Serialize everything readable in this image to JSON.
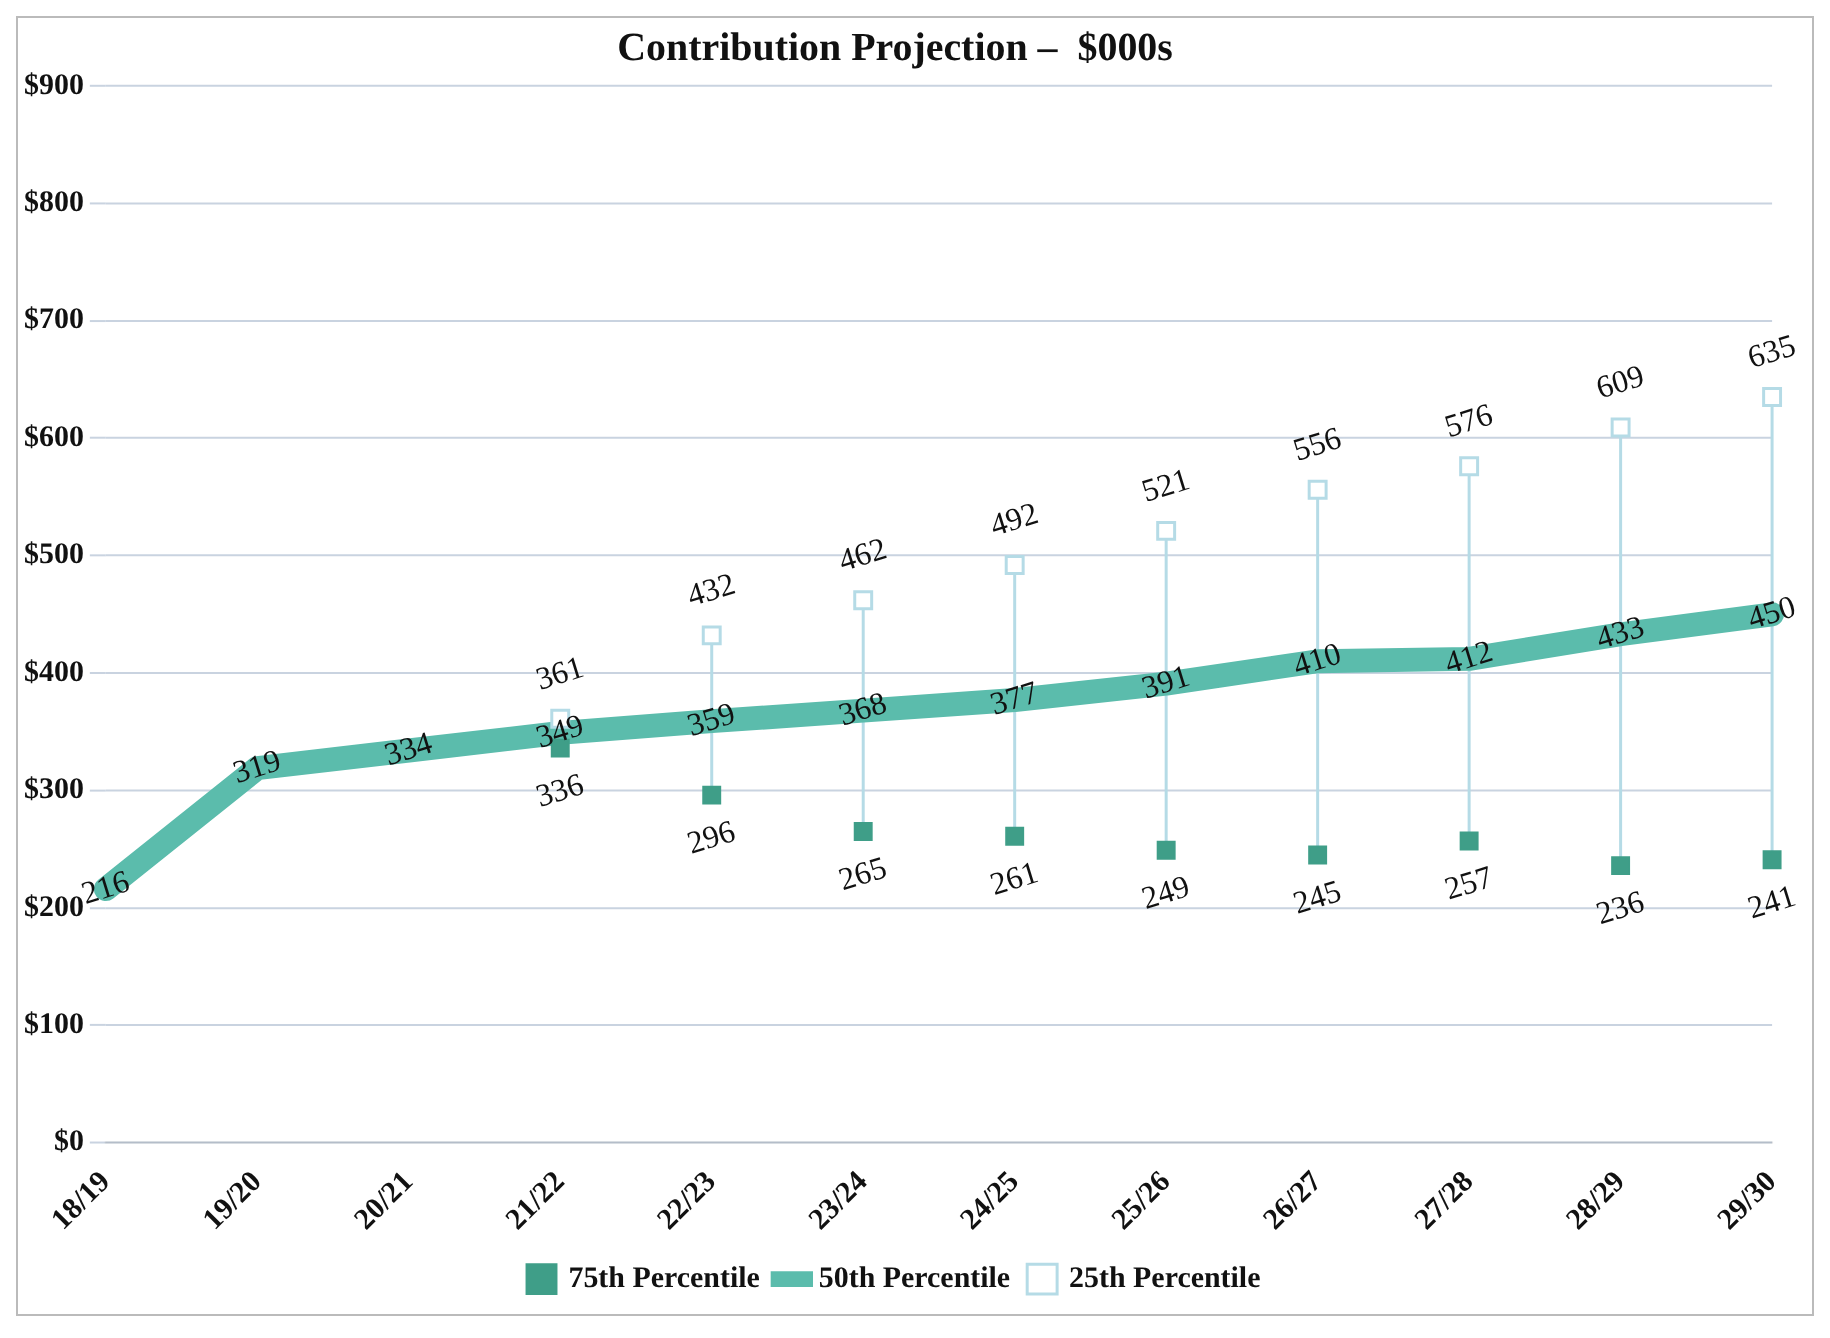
{
  "chart_data": {
    "type": "line",
    "title": "Contribution Projection –  $000s",
    "categories": [
      "18/19",
      "19/20",
      "20/21",
      "21/22",
      "22/23",
      "23/24",
      "24/25",
      "25/26",
      "26/27",
      "27/28",
      "28/29",
      "29/30"
    ],
    "series": [
      {
        "name": "75th Percentile",
        "type": "scatter",
        "color": "#3f9e88",
        "marker": "square",
        "values": [
          null,
          null,
          null,
          336,
          296,
          265,
          261,
          249,
          245,
          257,
          236,
          241
        ]
      },
      {
        "name": "50th Percentile",
        "color": "#5bbcac",
        "marker": "none",
        "line_style": "solid",
        "values": [
          216,
          319,
          334,
          349,
          359,
          368,
          377,
          391,
          410,
          412,
          433,
          450
        ]
      },
      {
        "name": "25th Percentile",
        "type": "scatter",
        "color": "#b5dbe6",
        "marker": "square",
        "values": [
          null,
          null,
          null,
          361,
          432,
          462,
          492,
          521,
          556,
          576,
          609,
          635
        ]
      }
    ],
    "ylim": [
      0,
      900
    ],
    "yticks": [
      {
        "value": 0,
        "label": "$0"
      },
      {
        "value": 100,
        "label": "$100"
      },
      {
        "value": 200,
        "label": "$200"
      },
      {
        "value": 300,
        "label": "$300"
      },
      {
        "value": 400,
        "label": "$400"
      },
      {
        "value": 500,
        "label": "$500"
      },
      {
        "value": 600,
        "label": "$600"
      },
      {
        "value": 700,
        "label": "$700"
      },
      {
        "value": 800,
        "label": "$800"
      },
      {
        "value": 900,
        "label": "$900"
      }
    ],
    "grid": "y",
    "legend": "bottom",
    "data_labels": true
  }
}
